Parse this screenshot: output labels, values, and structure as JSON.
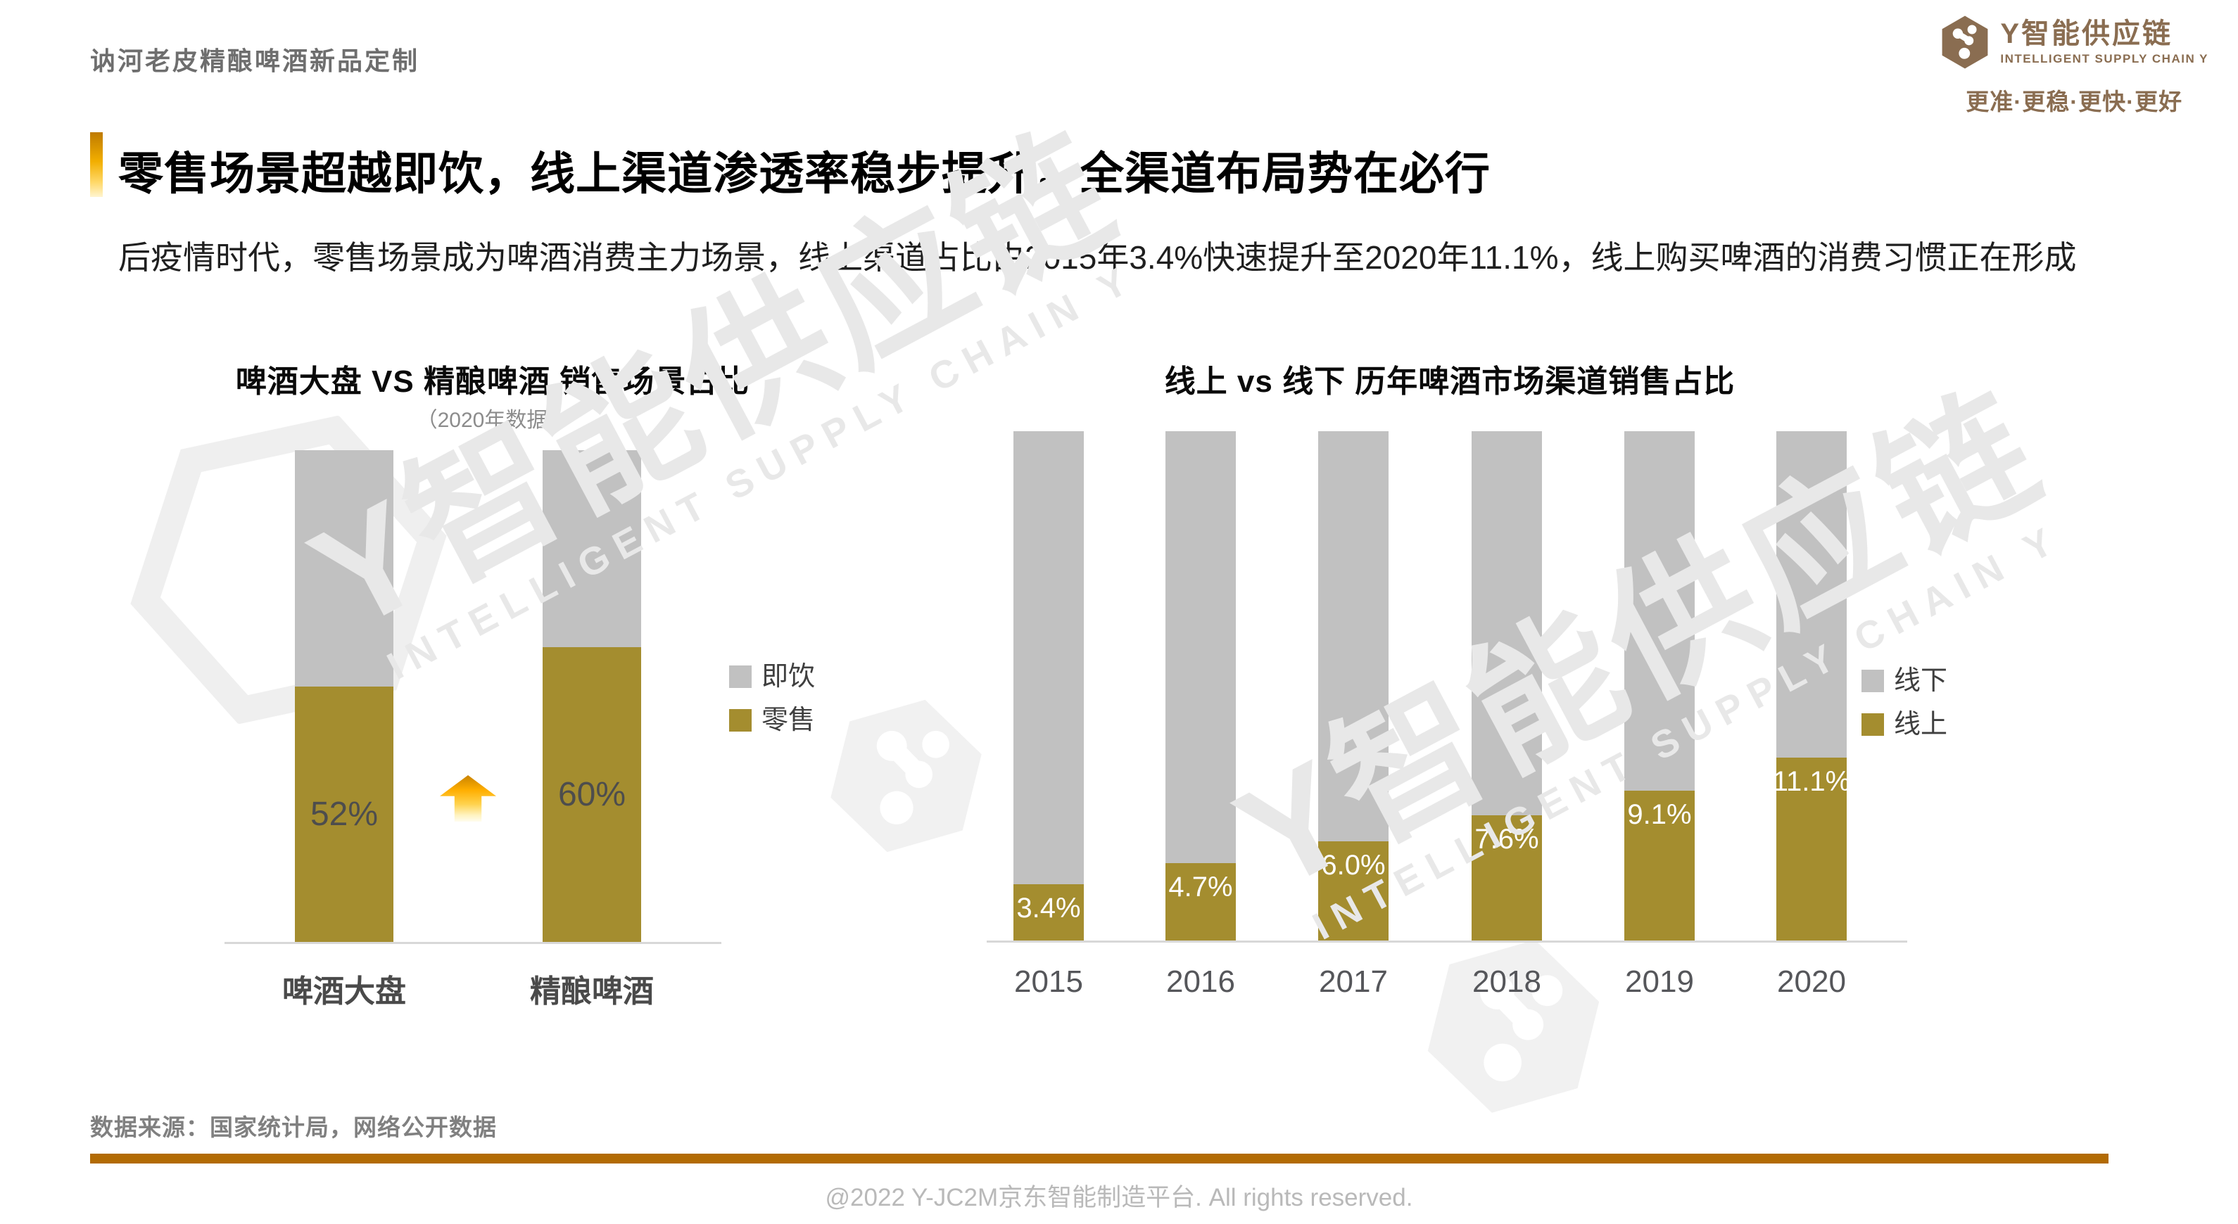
{
  "page": {
    "doc_title": "讷河老皮精酿啤酒新品定制",
    "source_note": "数据来源：国家统计局，网络公开数据",
    "footer": "@2022 Y-JC2M京东智能制造平台. All rights reserved."
  },
  "brand": {
    "name_cn": "Y智能供应链",
    "name_en": "INTELLIGENT SUPPLY CHAIN Y",
    "tagline": "更准·更稳·更快·更好",
    "color": "#8A6D51"
  },
  "headline": {
    "title": "零售场景超越即饮，线上渠道渗透率稳步提升，全渠道布局势在必行",
    "subtitle": "后疫情时代，零售场景成为啤酒消费主力场景，线上渠道占比由2015年3.4%快速提升至2020年11.1%，线上购买啤酒的消费习惯正在形成"
  },
  "watermark": {
    "text_cn": "Y智能供应链",
    "text_en": "INTELLIGENT SUPPLY CHAIN Y"
  },
  "colors": {
    "gold": "#A48D2F",
    "gray": "#C1C1C1",
    "brand": "#8A6D51",
    "rule_orange": "#B26B04",
    "axis": "#D8D8D8"
  },
  "chart_data": [
    {
      "type": "bar",
      "stacked": true,
      "title": "啤酒大盘 VS 精酿啤酒 销售场景占比",
      "subtitle": "（2020年数据）",
      "categories": [
        "啤酒大盘",
        "精酿啤酒"
      ],
      "series": [
        {
          "name": "零售",
          "color": "#A48D2F",
          "values": [
            52,
            60
          ],
          "labels": [
            "52%",
            "60%"
          ]
        },
        {
          "name": "即饮",
          "color": "#C1C1C1",
          "values": [
            48,
            40
          ],
          "labels": [
            "",
            ""
          ]
        }
      ],
      "legend": [
        {
          "label": "即饮",
          "color": "#C1C1C1"
        },
        {
          "label": "零售",
          "color": "#A48D2F"
        }
      ],
      "ylim": [
        0,
        100
      ],
      "unit": "%",
      "annotation": "gold up-arrow between the two bars indicating increase"
    },
    {
      "type": "bar",
      "stacked": true,
      "title": "线上 vs 线下 历年啤酒市场渠道销售占比",
      "categories": [
        "2015",
        "2016",
        "2017",
        "2018",
        "2019",
        "2020"
      ],
      "series": [
        {
          "name": "线上",
          "color": "#A48D2F",
          "values": [
            3.4,
            4.7,
            6.0,
            7.6,
            9.1,
            11.1
          ],
          "labels": [
            "3.4%",
            "4.7%",
            "6.0%",
            "7.6%",
            "9.1%",
            "11.1%"
          ]
        },
        {
          "name": "线下",
          "color": "#C1C1C1",
          "values": [
            96.6,
            95.3,
            94.0,
            92.4,
            90.9,
            88.9
          ],
          "labels": [
            "",
            "",
            "",
            "",
            "",
            ""
          ]
        }
      ],
      "legend": [
        {
          "label": "线下",
          "color": "#C1C1C1"
        },
        {
          "label": "线上",
          "color": "#A48D2F"
        }
      ],
      "ylim": [
        0,
        100
      ],
      "unit": "%",
      "visual_scale": 3.24
    }
  ]
}
